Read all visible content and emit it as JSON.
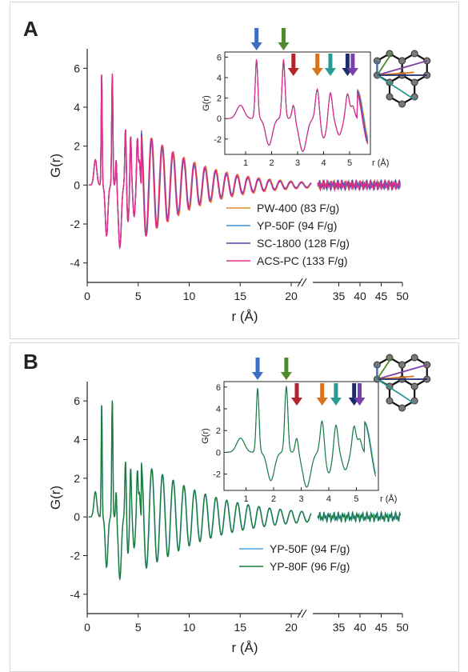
{
  "chart_data": [
    {
      "panel_label": "A",
      "type": "line",
      "xlabel": "r (Å)",
      "ylabel": "G(r)",
      "ylim": [
        -5,
        7
      ],
      "xticks": [
        "0",
        "5",
        "10",
        "15",
        "20",
        "35",
        "40",
        "45",
        "50"
      ],
      "yticks": [
        "-4",
        "-2",
        "0",
        "2",
        "4",
        "6"
      ],
      "axis_break": "20-30",
      "series": [
        {
          "name": "PW-400 (83 F/g)",
          "color": "#e08a2c",
          "first_peak": 5.6,
          "second_peak": 5.4,
          "damping": 0.15
        },
        {
          "name": "YP-50F (94 F/g)",
          "color": "#3b8fd4",
          "first_peak": 5.8,
          "second_peak": 5.7,
          "damping": 0.18
        },
        {
          "name": "SC-1800 (128 F/g)",
          "color": "#5b3ea6",
          "first_peak": 5.7,
          "second_peak": 5.5,
          "damping": 0.17
        },
        {
          "name": "ACS-PC (133 F/g)",
          "color": "#e0308a",
          "first_peak": 5.8,
          "second_peak": 5.8,
          "damping": 0.16
        }
      ],
      "inset": {
        "xlabel": "r (Å)",
        "ylabel": "G(r)",
        "xticks": [
          "1",
          "2",
          "3",
          "4",
          "5"
        ],
        "yticks": [
          "-2",
          "0",
          "2",
          "4",
          "6"
        ],
        "arrow_positions_r": [
          1.42,
          2.46,
          2.84,
          3.76,
          4.26,
          4.92,
          5.12
        ],
        "arrow_colors": [
          "#3a6fc4",
          "#4f8a2c",
          "#b3242c",
          "#d9731f",
          "#2a9a94",
          "#1f2d6e",
          "#7a3fa8"
        ]
      }
    },
    {
      "panel_label": "B",
      "type": "line",
      "xlabel": "r (Å)",
      "ylabel": "G(r)",
      "ylim": [
        -5,
        7
      ],
      "xticks": [
        "0",
        "5",
        "10",
        "15",
        "20",
        "35",
        "40",
        "45",
        "50"
      ],
      "yticks": [
        "-4",
        "-2",
        "0",
        "2",
        "4",
        "6"
      ],
      "axis_break": "20-30",
      "series": [
        {
          "name": "YP-50F (94 F/g)",
          "color": "#4aa6d8",
          "first_peak": 5.9,
          "second_peak": 6.0,
          "damping": 0.12
        },
        {
          "name": "YP-80F (96 F/g)",
          "color": "#1b7a3c",
          "first_peak": 5.9,
          "second_peak": 6.1,
          "damping": 0.12
        }
      ],
      "inset": {
        "xlabel": "r (Å)",
        "ylabel": "G(r)",
        "xticks": [
          "1",
          "2",
          "3",
          "4",
          "5"
        ],
        "yticks": [
          "-2",
          "0",
          "2",
          "4",
          "6"
        ],
        "arrow_positions_r": [
          1.42,
          2.46,
          2.84,
          3.76,
          4.26,
          4.92,
          5.12
        ],
        "arrow_colors": [
          "#3a6fc4",
          "#4f8a2c",
          "#b3242c",
          "#d9731f",
          "#2a9a94",
          "#1f2d6e",
          "#7a3fa8"
        ]
      }
    }
  ]
}
